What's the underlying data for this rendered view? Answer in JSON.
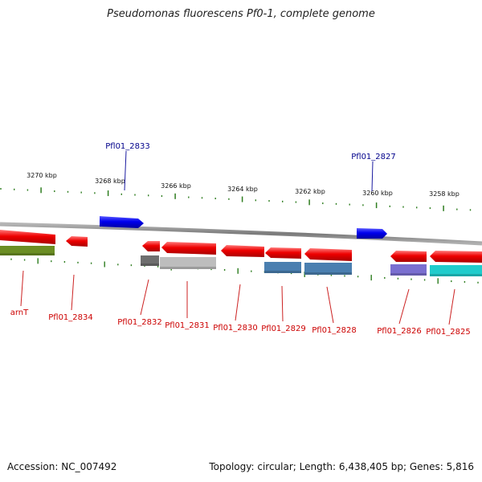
{
  "title": "Pseudomonas fluorescens Pf0-1, complete genome",
  "footer": {
    "accession": "Accession: NC_007492",
    "summary": "Topology: circular; Length: 6,438,405 bp; Genes: 5,816"
  },
  "colors": {
    "backbone": "#8a8a8a",
    "tick": "#2e7d1f",
    "forward_gene": "#0000ee",
    "reverse_gene": "#ee0000",
    "forward_label": "#00008b",
    "reverse_label": "#cc0000"
  },
  "scale_ticks": [
    "3270 kbp",
    "3268 kbp",
    "3266 kbp",
    "3264 kbp",
    "3262 kbp",
    "3260 kbp",
    "3258 kbp"
  ],
  "forward_labels": [
    "Pfl01_2833",
    "Pfl01_2827"
  ],
  "reverse_labels": [
    "arnT",
    "Pfl01_2834",
    "Pfl01_2832",
    "Pfl01_2831",
    "Pfl01_2830",
    "Pfl01_2829",
    "Pfl01_2828",
    "Pfl01_2826",
    "Pfl01_2825"
  ],
  "cog_colors": [
    "#6b8e23",
    "#6e6e6e",
    "#bdbdbd",
    "#4a7fb0",
    "#4a7fb0",
    "#7a6fd0",
    "#20cccc"
  ]
}
